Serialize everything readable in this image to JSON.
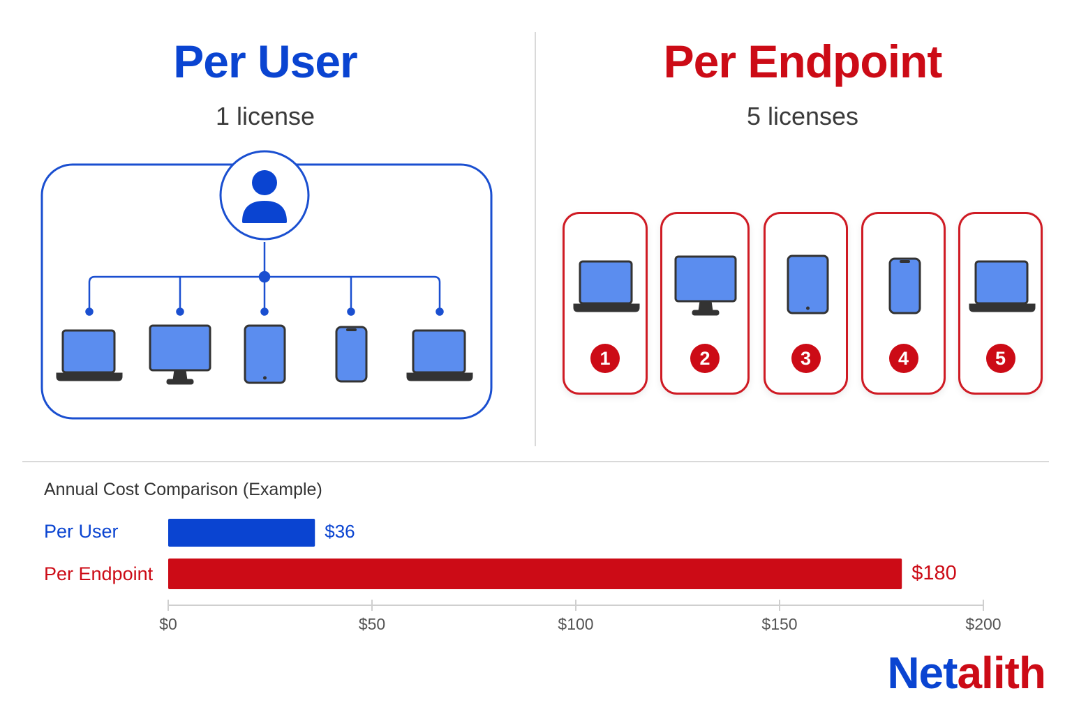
{
  "left": {
    "title": "Per User",
    "subtitle": "1 license"
  },
  "right": {
    "title": "Per Endpoint",
    "subtitle": "5 licenses",
    "endpoints": [
      "1",
      "2",
      "3",
      "4",
      "5"
    ]
  },
  "device_icons": {
    "left": [
      "laptop-icon",
      "monitor-icon",
      "tablet-icon",
      "phone-icon",
      "laptop-icon"
    ],
    "right": [
      "laptop-icon",
      "monitor-icon",
      "tablet-icon",
      "phone-icon",
      "laptop-icon"
    ]
  },
  "colors": {
    "user_blue": "#0a44d1",
    "endpoint_red": "#cc0b16",
    "screen_blue": "#5b8def",
    "device_dark": "#333333"
  },
  "brand": {
    "part1": "Net",
    "part2": "alith"
  },
  "chart_data": {
    "type": "bar",
    "orientation": "horizontal",
    "title": "Annual Cost Comparison (Example)",
    "categories": [
      "Per User",
      "Per Endpoint"
    ],
    "values": [
      36,
      180
    ],
    "value_labels": [
      "$36",
      "$180"
    ],
    "colors": [
      "#0a44d1",
      "#cc0b16"
    ],
    "xlim": [
      0,
      200
    ],
    "x_ticks": [
      0,
      50,
      100,
      150,
      200
    ],
    "x_tick_labels": [
      "$0",
      "$50",
      "$100",
      "$150",
      "$200"
    ],
    "grid": false
  }
}
